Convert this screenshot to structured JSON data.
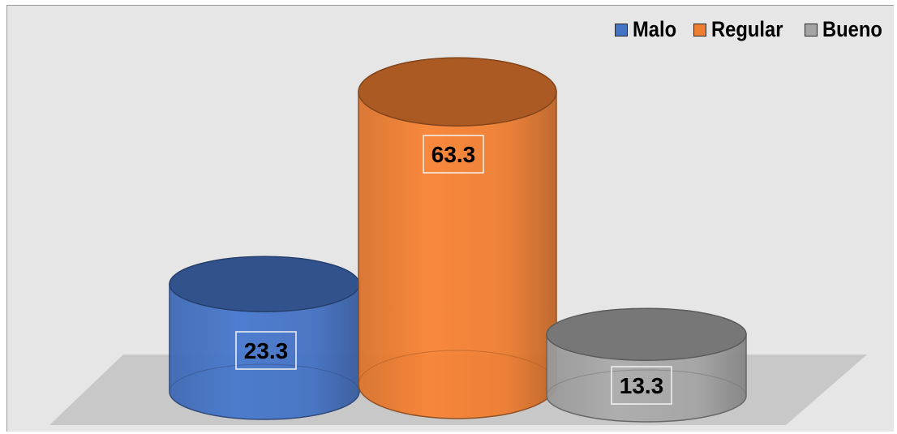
{
  "chart_data": {
    "type": "bar",
    "categories": [
      "Malo",
      "Regular",
      "Bueno"
    ],
    "values": [
      23.3,
      63.3,
      13.3
    ],
    "value_labels": [
      "23.3",
      "63.3",
      "13.3"
    ],
    "colors": [
      "#4472c4",
      "#ed7d31",
      "#a5a5a5"
    ],
    "shape": "cylinder-3d",
    "legend_position": "top-right",
    "grid": false,
    "title": "",
    "xlabel": "",
    "ylabel": ""
  },
  "legend": {
    "items": [
      {
        "label": "Malo",
        "color": "#4472c4"
      },
      {
        "label": "Regular",
        "color": "#ed7d31"
      },
      {
        "label": "Bueno",
        "color": "#a5a5a5"
      }
    ]
  }
}
